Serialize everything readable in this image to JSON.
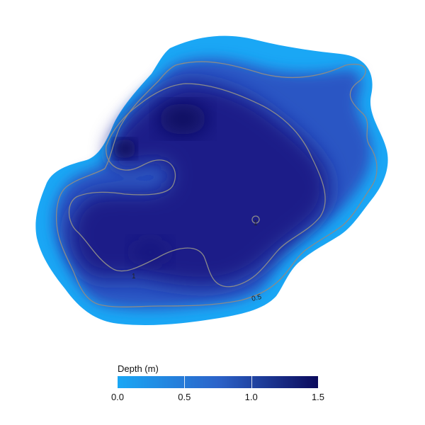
{
  "legend": {
    "title": "Depth (m)",
    "min": 0.0,
    "max": 1.5,
    "ticks": [
      "0.0",
      "0.5",
      "1.0",
      "1.5"
    ],
    "tick_values": [
      0.0,
      0.5,
      1.0,
      1.5
    ],
    "colors": {
      "shallow": "#1aa7f5",
      "mid": "#2c63c9",
      "deep": "#0b0a5c"
    }
  },
  "contours": [
    {
      "level": 0.5,
      "label": "0.5"
    },
    {
      "level": 1,
      "label": "1"
    },
    {
      "level": 1,
      "label": "1"
    }
  ]
}
